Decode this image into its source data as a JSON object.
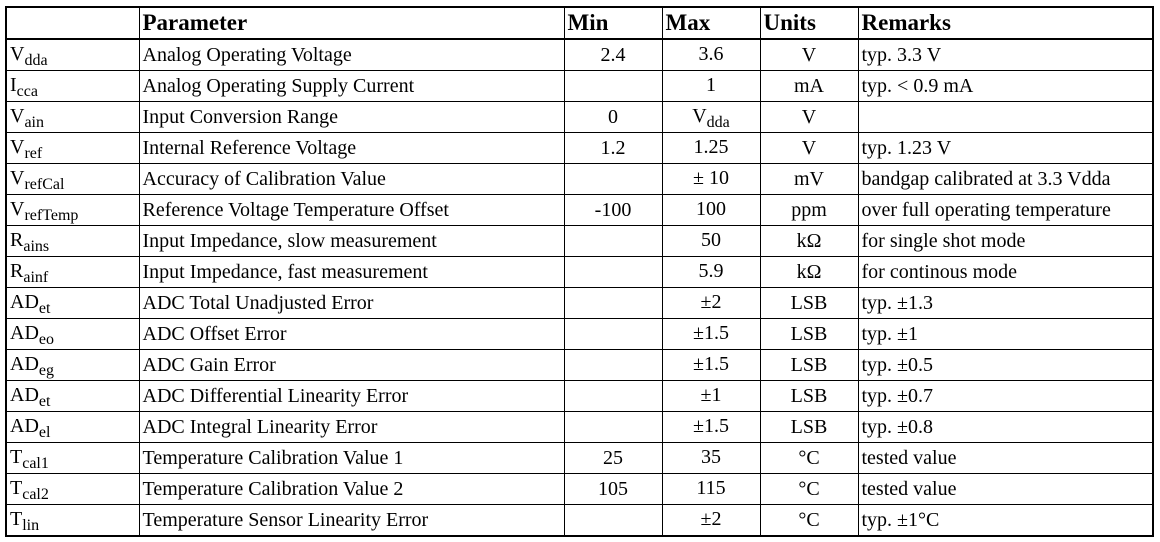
{
  "table": {
    "headers": {
      "parameter": "Parameter",
      "min": "Min",
      "max": "Max",
      "units": "Units",
      "remarks": "Remarks"
    },
    "rows": [
      {
        "sym": "V",
        "sub": "dda",
        "param": "Analog Operating Voltage",
        "min": "2.4",
        "max": "3.6",
        "max_sub": "",
        "unit": "V",
        "remark": "typ. 3.3 V"
      },
      {
        "sym": "I",
        "sub": "cca",
        "param": "Analog Operating Supply Current",
        "min": "",
        "max": "1",
        "max_sub": "",
        "unit": "mA",
        "remark": "typ. < 0.9 mA"
      },
      {
        "sym": "V",
        "sub": "ain",
        "param": "Input Conversion Range",
        "min": "0",
        "max": "V",
        "max_sub": "dda",
        "unit": "V",
        "remark": ""
      },
      {
        "sym": "V",
        "sub": "ref",
        "param": "Internal Reference Voltage",
        "min": "1.2",
        "max": "1.25",
        "max_sub": "",
        "unit": "V",
        "remark": "typ. 1.23 V"
      },
      {
        "sym": "V",
        "sub": "refCal",
        "param": "Accuracy of Calibration Value",
        "min": "",
        "max": "± 10",
        "max_sub": "",
        "unit": "mV",
        "remark": "bandgap calibrated at 3.3 Vdda"
      },
      {
        "sym": "V",
        "sub": "refTemp",
        "param": "Reference Voltage Temperature Offset",
        "min": "-100",
        "max": "100",
        "max_sub": "",
        "unit": "ppm",
        "remark": "over full operating temperature"
      },
      {
        "sym": "R",
        "sub": "ains",
        "param": "Input Impedance, slow measurement",
        "min": "",
        "max": "50",
        "max_sub": "",
        "unit": "kΩ",
        "remark": "for single shot mode"
      },
      {
        "sym": "R",
        "sub": "ainf",
        "param": "Input Impedance, fast measurement",
        "min": "",
        "max": "5.9",
        "max_sub": "",
        "unit": "kΩ",
        "remark": "for continous mode"
      },
      {
        "sym": "AD",
        "sub": "et",
        "param": "ADC Total Unadjusted Error",
        "min": "",
        "max": "±2",
        "max_sub": "",
        "unit": "LSB",
        "remark": "typ. ±1.3"
      },
      {
        "sym": "AD",
        "sub": "eo",
        "param": "ADC Offset Error",
        "min": "",
        "max": "±1.5",
        "max_sub": "",
        "unit": "LSB",
        "remark": "typ. ±1"
      },
      {
        "sym": "AD",
        "sub": "eg",
        "param": "ADC Gain Error",
        "min": "",
        "max": "±1.5",
        "max_sub": "",
        "unit": "LSB",
        "remark": "typ. ±0.5"
      },
      {
        "sym": "AD",
        "sub": "et",
        "param": "ADC Differential Linearity Error",
        "min": "",
        "max": "±1",
        "max_sub": "",
        "unit": "LSB",
        "remark": "typ. ±0.7"
      },
      {
        "sym": "AD",
        "sub": "el",
        "param": "ADC Integral Linearity Error",
        "min": "",
        "max": "±1.5",
        "max_sub": "",
        "unit": "LSB",
        "remark": "typ. ±0.8"
      },
      {
        "sym": "T",
        "sub": "cal1",
        "param": "Temperature Calibration Value 1",
        "min": "25",
        "max": "35",
        "max_sub": "",
        "unit": "°C",
        "remark": "tested value"
      },
      {
        "sym": "T",
        "sub": "cal2",
        "param": "Temperature Calibration Value 2",
        "min": "105",
        "max": "115",
        "max_sub": "",
        "unit": "°C",
        "remark": "tested value"
      },
      {
        "sym": "T",
        "sub": "lin",
        "param": "Temperature Sensor Linearity Error",
        "min": "",
        "max": "±2",
        "max_sub": "",
        "unit": "°C",
        "remark": "typ. ±1°C"
      }
    ]
  }
}
